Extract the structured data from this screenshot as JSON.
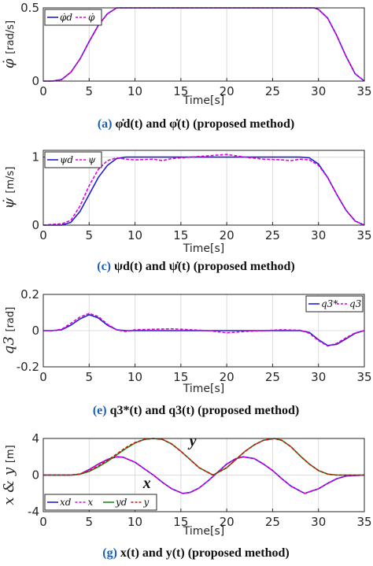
{
  "chart_data": [
    {
      "type": "line",
      "caption_id": "(a)",
      "caption_text": "φ̇d(t) and φ̇(t) (proposed method)",
      "xlabel": "Time[s]",
      "ylabel": "φ̇",
      "ylabel_unit": "[rad/s]",
      "xlim": [
        0,
        35
      ],
      "ylim": [
        0,
        0.5
      ],
      "xticks": [
        "0",
        "5",
        "10",
        "15",
        "20",
        "25",
        "30",
        "35"
      ],
      "yticks": [
        {
          "v": 0,
          "label": "0"
        },
        {
          "v": 0.5,
          "label": "0.5"
        }
      ],
      "grid": true,
      "legend_position": "top-left",
      "series": [
        {
          "name": "φ̇d",
          "color": "#1f1fcf",
          "dash": "solid",
          "x": [
            0,
            1,
            2,
            3,
            4,
            5,
            6,
            7,
            8,
            8.5,
            29,
            29.5,
            30,
            31,
            32,
            33,
            34,
            35
          ],
          "y": [
            0,
            0,
            0.01,
            0.06,
            0.15,
            0.27,
            0.38,
            0.46,
            0.5,
            0.5,
            0.5,
            0.5,
            0.49,
            0.43,
            0.31,
            0.17,
            0.05,
            0
          ]
        },
        {
          "name": "φ̇",
          "color": "#e000e0",
          "dash": "dashed",
          "x": [
            0,
            1,
            2,
            3,
            4,
            5,
            6,
            7,
            8,
            8.5,
            29,
            29.5,
            30,
            31,
            32,
            33,
            34,
            35
          ],
          "y": [
            0,
            0,
            0.01,
            0.06,
            0.15,
            0.27,
            0.38,
            0.46,
            0.5,
            0.5,
            0.5,
            0.5,
            0.49,
            0.43,
            0.31,
            0.17,
            0.05,
            0
          ]
        }
      ]
    },
    {
      "type": "line",
      "caption_id": "(c)",
      "caption_text": "ψd(t) and ψ̇(t) (proposed method)",
      "xlabel": "Time[s]",
      "ylabel": "ψ̇",
      "ylabel_unit": "[m/s]",
      "xlim": [
        0,
        35
      ],
      "ylim": [
        0,
        1.1
      ],
      "xticks": [
        "0",
        "5",
        "10",
        "15",
        "20",
        "25",
        "30",
        "35"
      ],
      "yticks": [
        {
          "v": 0,
          "label": "0"
        },
        {
          "v": 1,
          "label": "1"
        }
      ],
      "grid": true,
      "legend_position": "top-left",
      "series": [
        {
          "name": "ψd",
          "color": "#1f1fcf",
          "dash": "solid",
          "x": [
            0,
            2,
            3,
            4,
            5,
            6,
            7,
            8,
            9,
            28,
            29,
            30,
            31,
            32,
            33,
            34,
            35
          ],
          "y": [
            0,
            0,
            0.04,
            0.2,
            0.45,
            0.7,
            0.88,
            0.98,
            1,
            1,
            0.99,
            0.9,
            0.7,
            0.45,
            0.22,
            0.06,
            0
          ]
        },
        {
          "name": "ψ",
          "color": "#e000e0",
          "dash": "dashed",
          "x": [
            0,
            1,
            2,
            3,
            4,
            5,
            6,
            7,
            8,
            9,
            10,
            12,
            13,
            14,
            16,
            18,
            20,
            21,
            22,
            24,
            26,
            27,
            28,
            29,
            30,
            31,
            32,
            33,
            34,
            35
          ],
          "y": [
            0,
            0.01,
            0.02,
            0.07,
            0.28,
            0.58,
            0.82,
            0.95,
            0.99,
            0.97,
            0.96,
            0.97,
            0.95,
            0.98,
            1.0,
            1.02,
            1.04,
            1.02,
            1.0,
            0.97,
            0.96,
            0.95,
            0.97,
            0.96,
            0.88,
            0.7,
            0.45,
            0.22,
            0.06,
            0
          ]
        }
      ]
    },
    {
      "type": "line",
      "caption_id": "(e)",
      "caption_text": "q3*(t) and q3(t) (proposed method)",
      "xlabel": "Time[s]",
      "ylabel": "q3",
      "ylabel_unit": "[rad]",
      "xlim": [
        0,
        35
      ],
      "ylim": [
        -0.2,
        0.2
      ],
      "xticks": [
        "0",
        "5",
        "10",
        "15",
        "20",
        "25",
        "30",
        "35"
      ],
      "yticks": [
        {
          "v": -0.2,
          "label": "-0.2"
        },
        {
          "v": 0,
          "label": "0"
        },
        {
          "v": 0.2,
          "label": "0.2"
        }
      ],
      "grid": true,
      "legend_position": "top-right",
      "series": [
        {
          "name": "q3*",
          "color": "#1f1fcf",
          "dash": "solid",
          "x": [
            0,
            1,
            2,
            3,
            4,
            5,
            6,
            7,
            8,
            9,
            10,
            28,
            29,
            30,
            31,
            32,
            33,
            34,
            35
          ],
          "y": [
            0,
            0,
            0.005,
            0.03,
            0.065,
            0.088,
            0.07,
            0.03,
            0.005,
            0,
            0,
            0,
            -0.01,
            -0.05,
            -0.082,
            -0.075,
            -0.045,
            -0.015,
            0
          ]
        },
        {
          "name": "q3",
          "color": "#e000e0",
          "dash": "dashed",
          "x": [
            0,
            1,
            2,
            3,
            4,
            5,
            6,
            7,
            8,
            9,
            10,
            14,
            18,
            20,
            22,
            26,
            28,
            29,
            30,
            31,
            32,
            33,
            34,
            35
          ],
          "y": [
            0,
            0,
            0.008,
            0.04,
            0.075,
            0.095,
            0.078,
            0.035,
            0.005,
            -0.005,
            0.005,
            0.01,
            0,
            -0.012,
            -0.005,
            0.005,
            0.002,
            -0.015,
            -0.055,
            -0.085,
            -0.07,
            -0.04,
            -0.012,
            0
          ]
        }
      ]
    },
    {
      "type": "line",
      "caption_id": "(g)",
      "caption_text": "x(t) and y(t) (proposed method)",
      "xlabel": "Time[s]",
      "ylabel": "x & y",
      "ylabel_unit": "[m]",
      "xlim": [
        0,
        35
      ],
      "ylim": [
        -4,
        4
      ],
      "xticks": [
        "0",
        "5",
        "10",
        "15",
        "20",
        "25",
        "30",
        "35"
      ],
      "yticks": [
        {
          "v": -4,
          "label": "-4"
        },
        {
          "v": 0,
          "label": "0"
        },
        {
          "v": 4,
          "label": "4"
        }
      ],
      "grid": true,
      "legend_position": "bottom-left",
      "annotations": [
        {
          "text": "y",
          "x": 16.3,
          "y": 3.2
        },
        {
          "text": "x",
          "x": 11.3,
          "y": -1.4
        }
      ],
      "series": [
        {
          "name": "xd",
          "color": "#1f1fcf",
          "dash": "solid",
          "x": [
            0,
            2,
            3,
            4,
            5,
            6,
            7,
            8,
            8.7,
            10,
            11,
            12,
            13,
            14,
            15.2,
            16,
            17,
            18,
            19,
            20,
            21,
            21.8,
            23,
            24,
            25,
            26,
            27,
            28.5,
            30,
            31,
            32,
            33,
            35
          ],
          "y": [
            0,
            0,
            0,
            0.1,
            0.6,
            1.2,
            1.7,
            2.0,
            1.95,
            1.4,
            0.7,
            0,
            -0.8,
            -1.5,
            -2.0,
            -1.9,
            -1.4,
            -0.6,
            0.3,
            1.2,
            1.8,
            2.0,
            1.8,
            1.2,
            0.5,
            -0.4,
            -1.2,
            -2.0,
            -1.5,
            -0.9,
            -0.4,
            -0.1,
            0
          ]
        },
        {
          "name": "x",
          "color": "#e000e0",
          "dash": "dashed",
          "x": [
            0,
            2,
            3,
            4,
            5,
            6,
            7,
            8,
            8.7,
            10,
            11,
            12,
            13,
            14,
            15.2,
            16,
            17,
            18,
            19,
            20,
            21,
            21.8,
            23,
            24,
            25,
            26,
            27,
            28.5,
            30,
            31,
            32,
            33,
            35
          ],
          "y": [
            0,
            0,
            0,
            0.1,
            0.6,
            1.2,
            1.7,
            2.0,
            1.95,
            1.4,
            0.7,
            0,
            -0.8,
            -1.5,
            -2.0,
            -1.9,
            -1.4,
            -0.6,
            0.3,
            1.2,
            1.8,
            2.0,
            1.8,
            1.2,
            0.5,
            -0.4,
            -1.2,
            -2.0,
            -1.5,
            -0.9,
            -0.4,
            -0.1,
            0
          ]
        },
        {
          "name": "yd",
          "color": "#1a8c1a",
          "dash": "solid",
          "x": [
            0,
            3,
            4,
            5,
            6,
            7,
            8,
            9,
            10,
            11,
            12,
            13,
            14,
            15,
            16,
            17,
            18.5,
            20,
            21,
            22,
            23,
            24,
            25.2,
            26,
            27,
            28,
            29,
            30,
            31,
            32,
            33,
            35
          ],
          "y": [
            0,
            0,
            0.1,
            0.4,
            0.9,
            1.5,
            2.2,
            2.9,
            3.5,
            3.9,
            4.0,
            3.9,
            3.4,
            2.6,
            1.7,
            0.8,
            0,
            0.8,
            1.7,
            2.6,
            3.3,
            3.8,
            4.0,
            3.8,
            3.1,
            2.1,
            1.2,
            0.5,
            0.1,
            0,
            0,
            0
          ]
        },
        {
          "name": "y",
          "color": "#d01010",
          "dash": "dashed",
          "x": [
            0,
            3,
            4,
            5,
            6,
            7,
            8,
            9,
            10,
            11,
            12,
            13,
            14,
            15,
            16,
            17,
            18.5,
            20,
            21,
            22,
            23,
            24,
            25.2,
            26,
            27,
            28,
            29,
            30,
            31,
            32,
            33,
            35
          ],
          "y": [
            0,
            0,
            0.1,
            0.45,
            1.0,
            1.6,
            2.3,
            3.0,
            3.55,
            3.9,
            4.0,
            3.9,
            3.4,
            2.6,
            1.7,
            0.8,
            0,
            0.8,
            1.7,
            2.6,
            3.3,
            3.8,
            4.0,
            3.8,
            3.1,
            2.1,
            1.2,
            0.5,
            0.1,
            0,
            0,
            0
          ]
        }
      ]
    }
  ]
}
